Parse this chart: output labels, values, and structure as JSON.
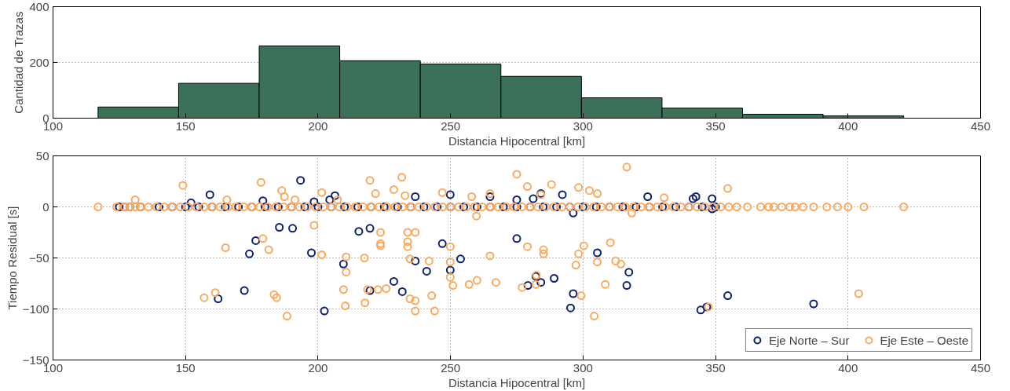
{
  "chart_data": [
    {
      "type": "histogram",
      "xlabel": "Distancia Hipocentral [km]",
      "ylabel": "Cantidad de Trazas",
      "color": "#3a7158",
      "bins": [
        117,
        147.4,
        177.8,
        208.2,
        238.6,
        269,
        299.4,
        329.8,
        360.2,
        390.6,
        421
      ],
      "values": [
        40,
        125,
        259,
        206,
        194,
        150,
        73,
        36,
        14,
        8
      ],
      "xlim": [
        100,
        450
      ],
      "xticks": [
        100,
        150,
        200,
        250,
        300,
        350,
        400,
        450
      ],
      "ylim": [
        0,
        400
      ],
      "yticks": [
        0,
        200,
        400
      ],
      "grid": "y"
    },
    {
      "type": "scatter",
      "xlabel": "Distancia Hipocentral [km]",
      "ylabel": "Tiempo Residual [s]",
      "marker": "circle",
      "legend": "bottom right",
      "grid": true,
      "xlim": [
        100,
        450
      ],
      "xticks": [
        100,
        150,
        200,
        250,
        300,
        350,
        400,
        450
      ],
      "ylim": [
        -150,
        50
      ],
      "yticks": [
        -150,
        -100,
        -50,
        0,
        50
      ],
      "series": [
        {
          "name": "Eje Norte – Sur",
          "color": "#0b2070",
          "x": [
            159.2,
            193.4,
            174.1,
            176.5,
            190.4,
            185.4,
            197.5,
            162.3,
            172.2,
            202.4,
            209.6,
            206.4,
            204.4,
            179.2,
            152.1,
            198.5,
            215.4,
            219.6,
            236.7,
            246.9,
            249.9,
            249.9,
            253.8,
            241,
            236.7,
            228.6,
            231.8,
            219.6,
            275,
            279.2,
            282.2,
            284.1,
            289.1,
            292.2,
            284.1,
            281.2,
            275,
            264.9,
            296.3,
            295.3,
            305.4,
            317.3,
            316.5,
            324.4,
            296.3,
            344.4,
            346.7,
            354.6,
            387,
            342.6,
            341.5,
            348.7,
            348.7,
            125,
            127,
            129,
            133,
            140,
            145,
            150,
            155,
            160,
            165,
            170,
            175,
            180,
            185,
            190,
            195,
            200,
            205,
            210,
            215,
            220,
            225,
            230,
            235,
            240,
            245,
            250,
            255,
            260,
            265,
            270,
            275,
            280,
            285,
            290,
            295,
            300,
            305,
            310,
            315,
            320,
            325,
            330,
            335,
            340,
            345,
            350
          ],
          "values": [
            12,
            26,
            -46,
            -33,
            -21,
            -20,
            -45,
            -90,
            -82,
            -102,
            -56,
            11,
            7,
            6,
            4,
            5,
            -24,
            -21,
            10,
            -36,
            12,
            -62,
            -51,
            -63,
            -53,
            -73,
            -83,
            -82,
            -31,
            -77,
            -68,
            -74,
            -70,
            12,
            13,
            8,
            7,
            10,
            -85,
            -99,
            -45,
            -64,
            -77,
            10,
            -6,
            -101,
            -98,
            -87,
            -95,
            10,
            8,
            8,
            -2,
            0,
            0,
            0,
            0,
            0,
            0,
            0,
            0,
            0,
            0,
            0,
            0,
            0,
            0,
            0,
            0,
            0,
            0,
            0,
            0,
            0,
            0,
            0,
            0,
            0,
            0,
            0,
            0,
            0,
            0,
            0,
            0,
            0,
            0,
            0,
            0,
            0,
            0,
            0,
            0,
            0,
            0,
            0,
            0,
            0,
            0,
            0
          ]
        },
        {
          "name": "Eje Este – Oeste",
          "color": "#fda95d",
          "x": [
            149,
            178.5,
            186.3,
            187.3,
            191.3,
            201.4,
            207.4,
            131,
            165.6,
            198.5,
            179.2,
            181.4,
            165.1,
            201.4,
            210.6,
            210.6,
            209.6,
            210.3,
            157,
            161.2,
            183.4,
            184.4,
            188.3,
            219.6,
            231.6,
            221.7,
            228.6,
            232.8,
            246.9,
            258,
            264.9,
            275,
            279,
            288.1,
            284.1,
            298.3,
            302.4,
            305.4,
            316.5,
            259.8,
            318.4,
            330.6,
            217.7,
            217.5,
            218.7,
            222.6,
            225.7,
            223.6,
            223.6,
            223.6,
            233.8,
            233.8,
            233.8,
            236.7,
            234.7,
            234.7,
            236.7,
            236.7,
            241.9,
            242.9,
            244,
            249.9,
            249.9,
            249.9,
            250.9,
            257,
            260,
            264.9,
            267.1,
            277,
            279,
            282.2,
            282.4,
            285.1,
            285.1,
            297.3,
            298.3,
            300.3,
            299.3,
            304.2,
            305.4,
            308.4,
            310.3,
            312.3,
            314.3,
            354.6,
            347.3,
            404,
            117,
            124,
            127,
            129,
            131,
            133,
            136,
            139,
            142,
            145,
            148,
            151,
            154,
            157,
            160,
            163,
            166,
            169,
            172,
            175,
            178,
            181,
            184,
            187,
            190,
            193,
            196,
            199,
            202,
            205,
            208,
            211,
            214,
            217,
            220,
            223,
            226,
            229,
            232,
            235,
            238,
            241,
            244,
            247,
            250,
            253,
            256,
            259,
            262,
            265,
            268,
            271,
            274,
            277,
            280,
            283,
            286,
            289,
            292,
            295,
            298,
            301,
            304,
            307,
            310,
            313,
            316,
            319,
            322,
            325,
            328,
            331,
            334,
            337,
            340,
            343,
            346,
            349,
            352,
            355,
            358,
            362,
            367,
            370,
            372,
            375,
            378,
            380,
            383,
            387,
            392,
            396,
            400,
            406,
            421
          ],
          "values": [
            21,
            24,
            16,
            10,
            7,
            14,
            7,
            7,
            7,
            -18,
            -31,
            -42,
            -40,
            -47,
            -49,
            -64,
            -81,
            -97,
            -89,
            -84,
            -86,
            -89,
            -107,
            26,
            29,
            13,
            17,
            11,
            14,
            10,
            13,
            32,
            20,
            22,
            12,
            19,
            16,
            13,
            39,
            -9,
            -6,
            9,
            -94,
            -50,
            -81,
            -81,
            -80,
            -25,
            -36,
            -38,
            -25,
            -34,
            -39,
            -25,
            -51,
            -90,
            -92,
            -102,
            -53,
            -87,
            -102,
            -39,
            -54,
            -69,
            -77,
            -76,
            -72,
            -48,
            -74,
            -79,
            -39,
            -76,
            -67,
            -42,
            -46,
            -57,
            -46,
            -38,
            -87,
            -107,
            -54,
            -76,
            -35,
            -53,
            -56,
            18,
            -98,
            -85,
            0,
            0,
            0,
            0,
            0,
            0,
            0,
            0,
            0,
            0,
            0,
            0,
            0,
            0,
            0,
            0,
            0,
            0,
            0,
            0,
            0,
            0,
            0,
            0,
            0,
            0,
            0,
            0,
            0,
            0,
            0,
            0,
            0,
            0,
            0,
            0,
            0,
            0,
            0,
            0,
            0,
            0,
            0,
            0,
            0,
            0,
            0,
            0,
            0,
            0,
            0,
            0,
            0,
            0,
            0,
            0,
            0,
            0,
            0,
            0,
            0,
            0,
            0,
            0,
            0,
            0,
            0,
            0,
            0,
            0,
            0,
            0,
            0,
            0,
            0,
            0,
            0,
            0,
            0,
            0,
            0,
            0,
            0,
            0,
            0,
            0,
            0,
            0,
            0,
            0,
            0,
            0,
            0,
            0,
            0
          ]
        }
      ]
    }
  ]
}
